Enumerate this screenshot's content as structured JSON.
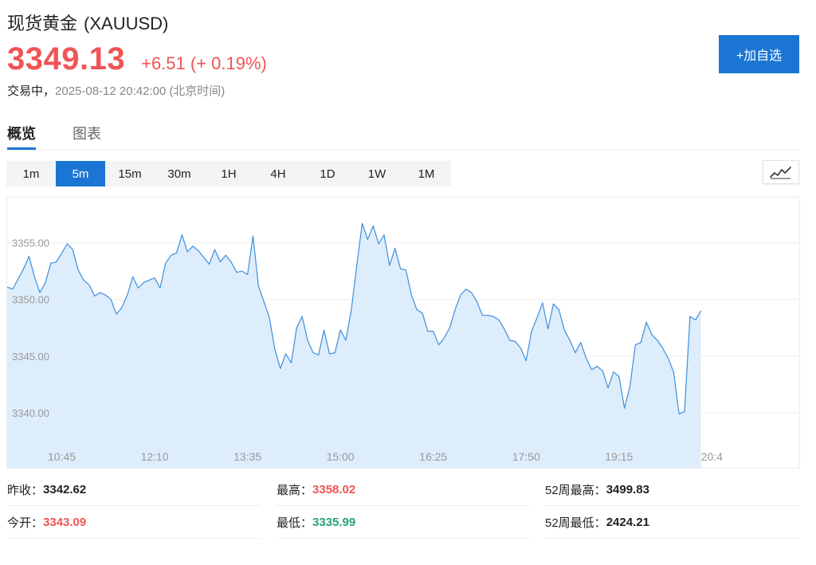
{
  "header": {
    "name": "现货黄金",
    "symbol": "(XAUUSD)",
    "price": "3349.13",
    "change": "+6.51 (+ 0.19%)",
    "status": "交易中，",
    "datetime": "2025-08-12 20:42:00",
    "timezone": "(北京时间)",
    "add_watchlist_label": "+加自选"
  },
  "tabs": [
    {
      "label": "概览",
      "active": true
    },
    {
      "label": "图表",
      "active": false
    }
  ],
  "periods": [
    {
      "label": "1m",
      "active": false
    },
    {
      "label": "5m",
      "active": true
    },
    {
      "label": "15m",
      "active": false
    },
    {
      "label": "30m",
      "active": false
    },
    {
      "label": "1H",
      "active": false
    },
    {
      "label": "4H",
      "active": false
    },
    {
      "label": "1D",
      "active": false
    },
    {
      "label": "1W",
      "active": false
    },
    {
      "label": "1M",
      "active": false
    }
  ],
  "chart_type_icon": "line-chart-icon",
  "colors": {
    "up": "#f05455",
    "down": "#26a17e",
    "accent": "#1a76d2",
    "line": "#3d8fdd",
    "area": "#deedfb"
  },
  "chart_data": {
    "type": "area",
    "x_tick_labels": [
      "10:45",
      "12:10",
      "13:35",
      "15:00",
      "16:25",
      "17:50",
      "19:15",
      "20:4"
    ],
    "y_tick_labels": [
      "3355.00",
      "3350.00",
      "3345.00",
      "3340.00"
    ],
    "y_ticks": [
      3355,
      3350,
      3345,
      3340
    ],
    "ylim": [
      3335.15,
      3358.98
    ],
    "x_range": [
      0,
      145
    ],
    "x_tick_positions": [
      10,
      27,
      44,
      61,
      78,
      95,
      112,
      129
    ],
    "grid": true,
    "values": [
      3351.1,
      3350.9,
      3351.8,
      3352.7,
      3353.8,
      3352.0,
      3350.6,
      3351.5,
      3353.2,
      3353.3,
      3354.1,
      3354.9,
      3354.4,
      3352.6,
      3351.7,
      3351.3,
      3350.3,
      3350.6,
      3350.4,
      3350.0,
      3348.7,
      3349.3,
      3350.4,
      3352.0,
      3351.0,
      3351.5,
      3351.7,
      3351.9,
      3351.0,
      3353.2,
      3353.9,
      3354.1,
      3355.7,
      3354.2,
      3354.7,
      3354.3,
      3353.7,
      3353.1,
      3354.4,
      3353.3,
      3353.9,
      3353.3,
      3352.4,
      3352.5,
      3352.2,
      3355.6,
      3351.2,
      3349.8,
      3348.4,
      3345.6,
      3343.9,
      3345.2,
      3344.4,
      3347.5,
      3348.5,
      3346.4,
      3345.3,
      3345.1,
      3347.3,
      3345.2,
      3345.3,
      3347.3,
      3346.4,
      3349.1,
      3353.0,
      3356.7,
      3355.3,
      3356.5,
      3354.9,
      3355.7,
      3353.0,
      3354.5,
      3352.7,
      3352.6,
      3350.4,
      3349.1,
      3348.8,
      3347.2,
      3347.2,
      3346.0,
      3346.6,
      3347.5,
      3349.1,
      3350.4,
      3350.9,
      3350.6,
      3349.8,
      3348.6,
      3348.6,
      3348.5,
      3348.2,
      3347.4,
      3346.4,
      3346.3,
      3345.7,
      3344.6,
      3347.2,
      3348.4,
      3349.7,
      3347.4,
      3349.6,
      3349.1,
      3347.3,
      3346.4,
      3345.3,
      3346.2,
      3344.8,
      3343.8,
      3344.1,
      3343.7,
      3342.2,
      3343.6,
      3343.2,
      3340.4,
      3342.3,
      3346.0,
      3346.2,
      3348.0,
      3346.9,
      3346.4,
      3345.7,
      3344.8,
      3343.6,
      3339.9,
      3340.1,
      3348.5,
      3348.2,
      3349.0
    ]
  },
  "stats": {
    "prev_close_label": "昨收：",
    "prev_close": "3342.62",
    "high_label": "最高：",
    "high": "3358.02",
    "week52_high_label": "52周最高：",
    "week52_high": "3499.83",
    "open_label": "今开：",
    "open": "3343.09",
    "low_label": "最低：",
    "low": "3335.99",
    "week52_low_label": "52周最低：",
    "week52_low": "2424.21"
  }
}
